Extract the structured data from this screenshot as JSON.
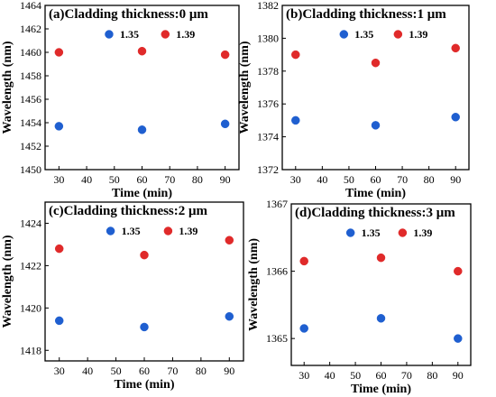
{
  "chart_data": [
    {
      "type": "scatter",
      "title": "(a)Cladding thickness:0 μm",
      "xlabel": "Time (min)",
      "ylabel": "Wavelength (nm)",
      "xlim": [
        25,
        95
      ],
      "ylim": [
        1450,
        1464
      ],
      "xticks": [
        30,
        40,
        50,
        60,
        70,
        80,
        90
      ],
      "yticks": [
        1450,
        1452,
        1454,
        1456,
        1458,
        1460,
        1462,
        1464
      ],
      "x": [
        30,
        60,
        90
      ],
      "series": [
        {
          "name": "1.35",
          "color": "#1f5fd0",
          "values": [
            1453.7,
            1453.4,
            1453.9
          ]
        },
        {
          "name": "1.39",
          "color": "#e02a2a",
          "values": [
            1460.0,
            1460.1,
            1459.8
          ]
        }
      ],
      "legend": "top"
    },
    {
      "type": "scatter",
      "title": "(b)Cladding thickness:1 μm",
      "xlabel": "Time (min)",
      "ylabel": "Wavelength (nm)",
      "xlim": [
        25,
        95
      ],
      "ylim": [
        1372,
        1382
      ],
      "xticks": [
        30,
        40,
        50,
        60,
        70,
        80,
        90
      ],
      "yticks": [
        1372,
        1374,
        1376,
        1378,
        1380,
        1382
      ],
      "x": [
        30,
        60,
        90
      ],
      "series": [
        {
          "name": "1.35",
          "color": "#1f5fd0",
          "values": [
            1375.0,
            1374.7,
            1375.2
          ]
        },
        {
          "name": "1.39",
          "color": "#e02a2a",
          "values": [
            1379.0,
            1378.5,
            1379.4
          ]
        }
      ],
      "legend": "top"
    },
    {
      "type": "scatter",
      "title": "(c)Cladding thickness:2 μm",
      "xlabel": "Time (min)",
      "ylabel": "Wavelength (nm)",
      "xlim": [
        25,
        95
      ],
      "ylim": [
        1417.5,
        1425
      ],
      "xticks": [
        30,
        40,
        50,
        60,
        70,
        80,
        90
      ],
      "yticks": [
        1418,
        1420,
        1422,
        1424
      ],
      "x": [
        30,
        60,
        90
      ],
      "series": [
        {
          "name": "1.35",
          "color": "#1f5fd0",
          "values": [
            1419.4,
            1419.1,
            1419.6
          ]
        },
        {
          "name": "1.39",
          "color": "#e02a2a",
          "values": [
            1422.8,
            1422.5,
            1423.2
          ]
        }
      ],
      "legend": "top"
    },
    {
      "type": "scatter",
      "title": "(d)Cladding thickness:3 μm",
      "xlabel": "Time (min)",
      "ylabel": "Wavelength (nm)",
      "xlim": [
        25,
        95
      ],
      "ylim": [
        1364.6,
        1367
      ],
      "xticks": [
        30,
        40,
        50,
        60,
        70,
        80,
        90
      ],
      "yticks": [
        1365,
        1366,
        1367
      ],
      "x": [
        30,
        60,
        90
      ],
      "series": [
        {
          "name": "1.35",
          "color": "#1f5fd0",
          "values": [
            1365.15,
            1365.3,
            1365.0
          ]
        },
        {
          "name": "1.39",
          "color": "#e02a2a",
          "values": [
            1366.15,
            1366.2,
            1366.0
          ]
        }
      ],
      "legend": "top"
    }
  ]
}
